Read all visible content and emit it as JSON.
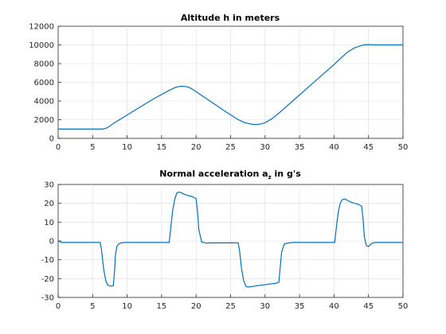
{
  "chart_data": [
    {
      "type": "line",
      "title": "Altitude h in meters",
      "xlabel": "",
      "ylabel": "",
      "xlim": [
        0,
        50
      ],
      "ylim": [
        0,
        12000
      ],
      "xticks": [
        0,
        5,
        10,
        15,
        20,
        25,
        30,
        35,
        40,
        45,
        50
      ],
      "yticks": [
        0,
        2000,
        4000,
        6000,
        8000,
        10000,
        12000
      ],
      "grid": true,
      "color": "#0072BD",
      "series": [
        {
          "x": [
            0,
            6.5,
            7,
            7.5,
            8,
            10,
            12,
            14,
            16,
            17,
            17.5,
            18,
            18.5,
            19,
            19.5,
            20,
            22,
            24,
            26,
            27,
            28,
            28.5,
            29,
            29.5,
            30,
            31,
            32,
            34,
            36,
            38,
            40,
            41,
            42,
            43,
            44,
            44.5,
            45,
            46,
            48,
            50
          ],
          "y": [
            1000,
            1000,
            1100,
            1300,
            1600,
            2500,
            3400,
            4300,
            5100,
            5450,
            5550,
            5580,
            5550,
            5450,
            5250,
            5000,
            4000,
            3000,
            2050,
            1700,
            1520,
            1490,
            1500,
            1560,
            1680,
            2100,
            2700,
            4000,
            5300,
            6600,
            7900,
            8600,
            9250,
            9700,
            9950,
            10020,
            10030,
            10000,
            10000,
            10000
          ]
        }
      ]
    },
    {
      "type": "line",
      "title": "Normal acceleration a",
      "title_subscript": "z",
      "title_suffix": " in g's",
      "xlabel": "",
      "ylabel": "",
      "xlim": [
        0,
        50
      ],
      "ylim": [
        -30,
        30
      ],
      "xticks": [
        0,
        5,
        10,
        15,
        20,
        25,
        30,
        35,
        40,
        45,
        50
      ],
      "yticks": [
        -30,
        -20,
        -10,
        0,
        10,
        20,
        30
      ],
      "grid": true,
      "color": "#0072BD",
      "series": [
        {
          "x": [
            0,
            0.3,
            0.6,
            6.1,
            6.3,
            6.6,
            6.9,
            7.2,
            7.6,
            8.0,
            8.2,
            8.3,
            8.5,
            8.8,
            9.2,
            9.6,
            16.1,
            16.3,
            16.6,
            16.9,
            17.2,
            17.6,
            18.5,
            19.5,
            20.0,
            20.2,
            20.4,
            20.8,
            21.5,
            22.0,
            26.1,
            26.3,
            26.6,
            26.9,
            27.2,
            27.5,
            28.5,
            30,
            31.5,
            32.0,
            32.2,
            32.4,
            32.8,
            33.5,
            34.0,
            40.1,
            40.3,
            40.6,
            40.9,
            41.2,
            41.6,
            42.5,
            43.5,
            44.0,
            44.2,
            44.4,
            44.7,
            45.0,
            45.5,
            46,
            50
          ],
          "y": [
            0,
            -0.5,
            -0.8,
            -0.8,
            -5,
            -15,
            -21,
            -23.5,
            -24,
            -23.8,
            -15,
            -8,
            -3,
            -1.5,
            -1,
            -0.8,
            -0.8,
            6,
            16,
            22,
            25.5,
            26,
            24.5,
            23.5,
            22.5,
            16,
            6,
            -0.5,
            -1.2,
            -1,
            -1,
            -5,
            -15,
            -21,
            -24,
            -24.5,
            -24,
            -23.2,
            -22.5,
            -22,
            -14,
            -6,
            -1.5,
            -1,
            -0.8,
            -0.8,
            6,
            15,
            20,
            22,
            22.3,
            20.5,
            19.5,
            18.5,
            12,
            2,
            -2.5,
            -3,
            -1.2,
            -0.8,
            -0.8
          ]
        }
      ]
    }
  ]
}
